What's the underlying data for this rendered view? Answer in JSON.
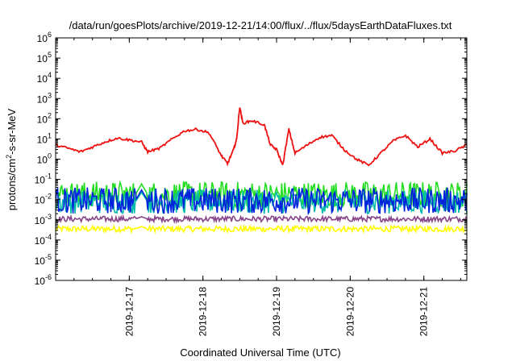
{
  "chart_data": {
    "type": "line",
    "title": "/data/run/goesPlots/archive/2019-12-21/14:00/flux/../flux/5daysEarthDataFluxes.txt",
    "xlabel": "Coordinated Universal Time (UTC)",
    "ylabel": {
      "base": "protons/cm",
      "sup": "2",
      "rest": "-s-sr-MeV"
    },
    "y_scale": "log",
    "y_ticks": [
      {
        "base": "10",
        "exp": "-6"
      },
      {
        "base": "10",
        "exp": "-5"
      },
      {
        "base": "10",
        "exp": "-4"
      },
      {
        "base": "10",
        "exp": "-3"
      },
      {
        "base": "10",
        "exp": "-2"
      },
      {
        "base": "10",
        "exp": "-1"
      },
      {
        "base": "10",
        "exp": "0"
      },
      {
        "base": "10",
        "exp": "1"
      },
      {
        "base": "10",
        "exp": "2"
      },
      {
        "base": "10",
        "exp": "3"
      },
      {
        "base": "10",
        "exp": "4"
      },
      {
        "base": "10",
        "exp": "5"
      },
      {
        "base": "10",
        "exp": "6"
      }
    ],
    "ylim_exp": [
      -6,
      6
    ],
    "x_ticks": [
      "2019-12-17",
      "2019-12-18",
      "2019-12-19",
      "2019-12-20",
      "2019-12-21"
    ],
    "x_range": [
      "2019-12-16 00:00",
      "2019-12-21 14:00"
    ],
    "grid": false,
    "series": [
      {
        "color": "#ee1111",
        "points": [
          [
            "2019-12-16 00:00",
            5.0
          ],
          [
            "2019-12-16 04:00",
            3.5
          ],
          [
            "2019-12-16 08:00",
            2.3
          ],
          [
            "2019-12-16 12:00",
            4.0
          ],
          [
            "2019-12-16 16:00",
            7.0
          ],
          [
            "2019-12-16 20:00",
            11.0
          ],
          [
            "2019-12-17 00:00",
            9.0
          ],
          [
            "2019-12-17 04:00",
            7.0
          ],
          [
            "2019-12-17 06:00",
            2.3
          ],
          [
            "2019-12-17 10:00",
            3.5
          ],
          [
            "2019-12-17 14:00",
            10.0
          ],
          [
            "2019-12-17 18:00",
            25.0
          ],
          [
            "2019-12-17 22:00",
            30.0
          ],
          [
            "2019-12-18 02:00",
            20.0
          ],
          [
            "2019-12-18 06:00",
            1.5
          ],
          [
            "2019-12-18 08:00",
            0.6
          ],
          [
            "2019-12-18 10:00",
            3.0
          ],
          [
            "2019-12-18 11:00",
            10.0
          ],
          [
            "2019-12-18 12:00",
            400.0
          ],
          [
            "2019-12-18 13:00",
            60.0
          ],
          [
            "2019-12-18 16:00",
            80.0
          ],
          [
            "2019-12-18 20:00",
            50.0
          ],
          [
            "2019-12-18 22:00",
            5.0
          ],
          [
            "2019-12-19 00:00",
            3.0
          ],
          [
            "2019-12-19 02:00",
            0.5
          ],
          [
            "2019-12-19 04:00",
            30.0
          ],
          [
            "2019-12-19 06:00",
            2.0
          ],
          [
            "2019-12-19 10:00",
            5.0
          ],
          [
            "2019-12-19 14:00",
            12.0
          ],
          [
            "2019-12-19 18:00",
            15.0
          ],
          [
            "2019-12-19 22:00",
            3.0
          ],
          [
            "2019-12-20 02:00",
            1.0
          ],
          [
            "2019-12-20 06:00",
            0.5
          ],
          [
            "2019-12-20 10:00",
            2.0
          ],
          [
            "2019-12-20 14:00",
            8.0
          ],
          [
            "2019-12-20 18:00",
            15.0
          ],
          [
            "2019-12-20 22:00",
            4.0
          ],
          [
            "2019-12-21 02:00",
            10.0
          ],
          [
            "2019-12-21 06:00",
            2.0
          ],
          [
            "2019-12-21 10:00",
            2.5
          ],
          [
            "2019-12-21 14:00",
            5.0
          ]
        ]
      },
      {
        "color": "#22dd22",
        "band": [
          0.004,
          0.08
        ],
        "noise": true
      },
      {
        "color": "#00bbaa",
        "band": [
          0.002,
          0.03
        ],
        "noise": true
      },
      {
        "color": "#0022dd",
        "band": [
          0.002,
          0.04
        ],
        "noise": true
      },
      {
        "color": "#884488",
        "band": [
          0.0008,
          0.0015
        ],
        "noise": true
      },
      {
        "color": "#ffff00",
        "band": [
          0.00025,
          0.0005
        ],
        "noise": true
      }
    ],
    "data_gap": [
      "2019-12-17 02:00",
      "2019-12-17 06:00"
    ]
  }
}
